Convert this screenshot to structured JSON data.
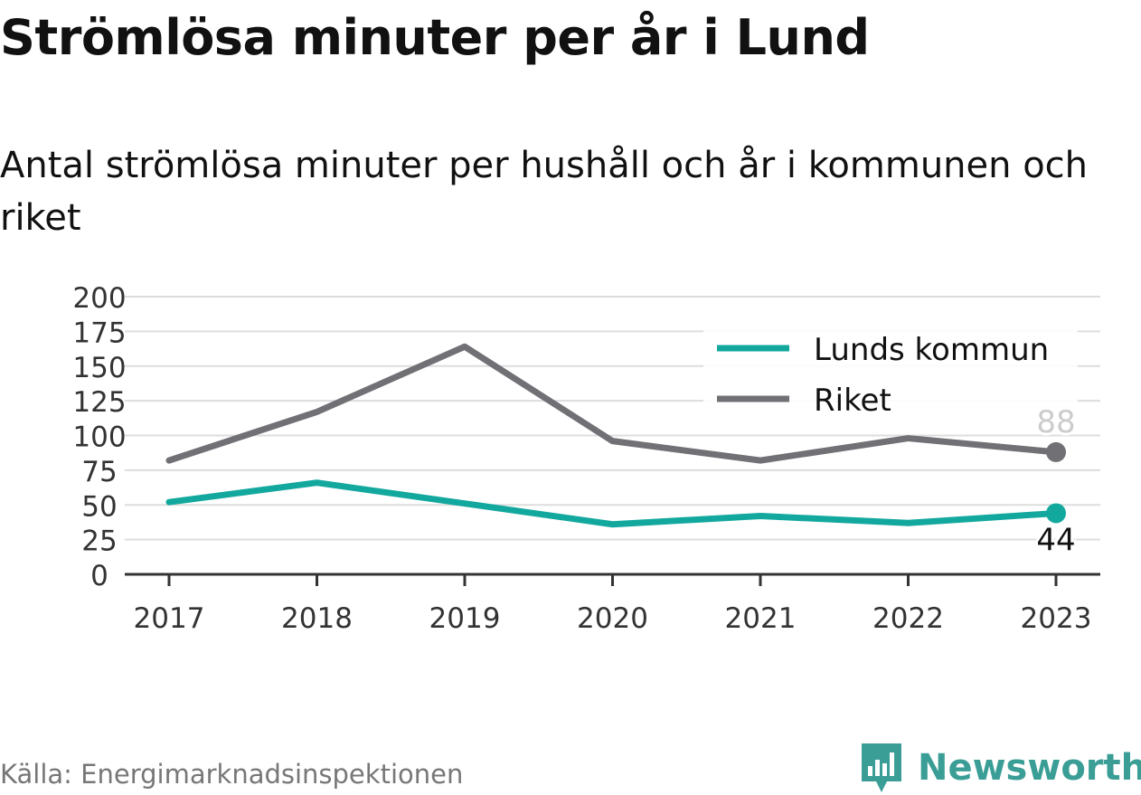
{
  "chart_data": {
    "type": "line",
    "title": "Strömlösa minuter per år i Lund",
    "subtitle": "Antal strömlösa minuter per hushåll och år i kommunen och riket",
    "categories": [
      "2017",
      "2018",
      "2019",
      "2020",
      "2021",
      "2022",
      "2023"
    ],
    "series": [
      {
        "name": "Lunds kommun",
        "color": "#13a89e",
        "values": [
          52,
          66,
          51,
          36,
          42,
          37,
          44
        ]
      },
      {
        "name": "Riket",
        "color": "#707075",
        "values": [
          82,
          117,
          164,
          96,
          82,
          98,
          88
        ]
      }
    ],
    "end_labels": [
      "44",
      "88"
    ],
    "ylim": [
      0,
      200
    ],
    "yticks": [
      0,
      25,
      50,
      75,
      100,
      125,
      150,
      175,
      200
    ],
    "grid": true,
    "legend_position": "top-right"
  },
  "source": "Källa: Energimarknadsinspektionen",
  "brand": {
    "name": "Newsworthy",
    "icon": "newsworthy-logo-icon",
    "color": "#3b9e96"
  }
}
